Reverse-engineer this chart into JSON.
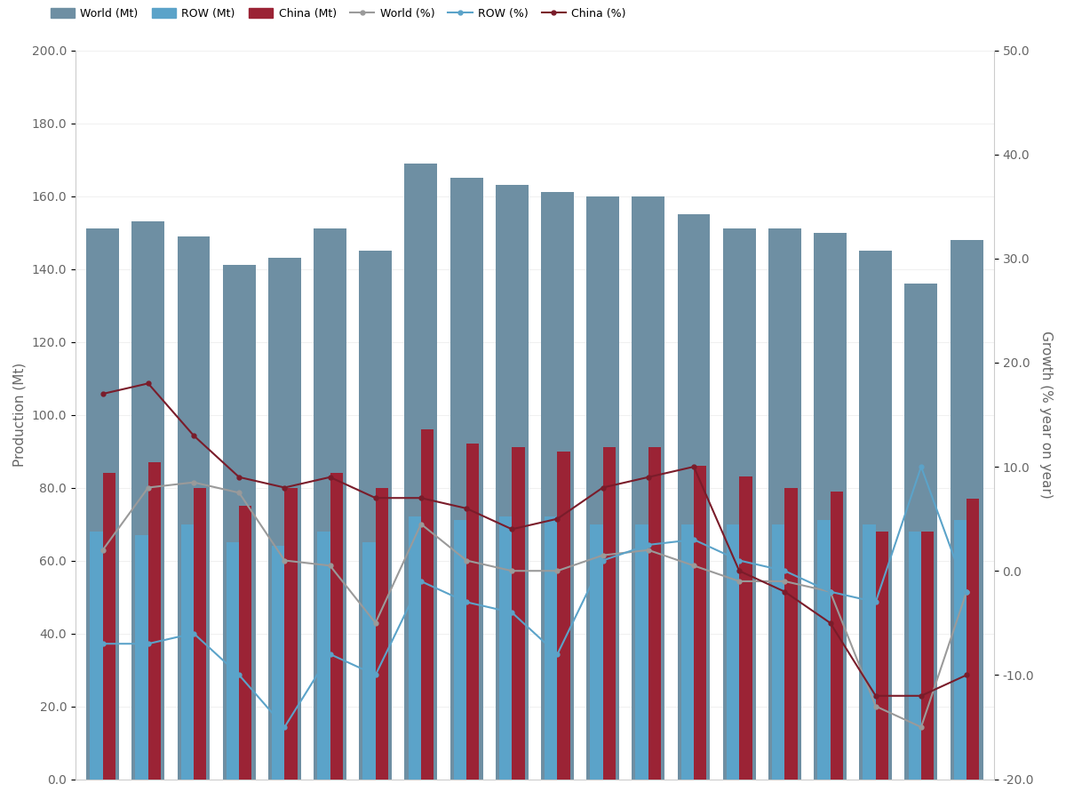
{
  "world_mt": [
    151,
    153,
    149,
    141,
    143,
    151,
    145,
    169,
    165,
    163,
    161,
    160,
    160,
    155,
    151,
    151,
    150,
    145,
    136,
    148
  ],
  "row_mt": [
    68,
    67,
    70,
    65,
    64,
    68,
    65,
    72,
    71,
    72,
    72,
    70,
    70,
    70,
    70,
    70,
    71,
    70,
    68,
    71
  ],
  "china_mt": [
    84,
    87,
    80,
    75,
    80,
    84,
    80,
    96,
    92,
    91,
    90,
    91,
    91,
    86,
    83,
    80,
    79,
    68,
    68,
    77
  ],
  "world_pct": [
    2.0,
    8.0,
    8.5,
    7.5,
    1.0,
    0.5,
    -5.0,
    4.5,
    1.0,
    0.0,
    0.0,
    1.5,
    2.0,
    0.5,
    -1.0,
    -1.0,
    -2.0,
    -13.0,
    -15.0,
    -2.0
  ],
  "row_pct": [
    -7.0,
    -7.0,
    -6.0,
    -10.0,
    -15.0,
    -8.0,
    -10.0,
    -1.0,
    -3.0,
    -4.0,
    -8.0,
    1.0,
    2.5,
    3.0,
    1.0,
    0.0,
    -2.0,
    -3.0,
    10.0,
    -2.0
  ],
  "china_pct": [
    17.0,
    18.0,
    13.0,
    9.0,
    8.0,
    9.0,
    7.0,
    7.0,
    6.0,
    4.0,
    5.0,
    8.0,
    9.0,
    10.0,
    0.0,
    -2.0,
    -5.0,
    -12.0,
    -12.0,
    -10.0
  ],
  "colors": {
    "world_bar": "#6e8fa3",
    "row_bar": "#5ba3c9",
    "china_bar": "#9b2335",
    "world_line": "#9a9a9a",
    "row_line": "#5ba3c9",
    "china_line": "#7a1c2a"
  },
  "ylim_left": [
    0,
    200
  ],
  "ylim_right": [
    -20,
    50
  ],
  "yticks_left": [
    0,
    20,
    40,
    60,
    80,
    100,
    120,
    140,
    160,
    180,
    200
  ],
  "yticks_right": [
    -20,
    -10,
    0,
    10,
    20,
    30,
    40,
    50
  ],
  "legend_labels": [
    "World (Mt)",
    "ROW (Mt)",
    "China (Mt)",
    "World (%)",
    "ROW (%)",
    "China (%)"
  ],
  "ylabel_left": "Production (Mt)",
  "ylabel_right": "Growth (% year on year)"
}
